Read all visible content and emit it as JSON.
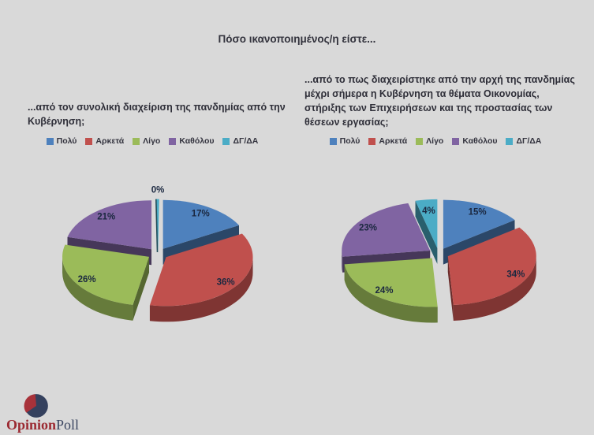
{
  "title": "Πόσο ικανοποιημένος/η είστε...",
  "colors": {
    "background": "#D9D9D9",
    "title_text": "#33333D",
    "label_text": "#1B2840"
  },
  "brand": {
    "name_primary": "Opinion",
    "name_secondary": "Poll",
    "primary_color": "#9B2A32",
    "secondary_color": "#3A4560",
    "mark_color": "#35415E",
    "mark_accent": "#A8323A"
  },
  "chart_data": [
    {
      "type": "pie",
      "variant": "3d-exploded",
      "question": "...από τον συνολική διαχείριση της πανδημίας από την Κυβέρνηση;",
      "categories": [
        "Πολύ",
        "Αρκετά",
        "Λίγο",
        "Καθόλου",
        "ΔΓ/ΔΑ"
      ],
      "values": [
        17,
        36,
        26,
        21,
        0
      ],
      "labels": [
        "17%",
        "36%",
        "26%",
        "21%",
        "0%"
      ],
      "colors": [
        "#4E81BD",
        "#C0504D",
        "#9BBB59",
        "#8064A2",
        "#4BACC6"
      ],
      "legend_position": "top",
      "start_angle_deg": 0,
      "direction": "clockwise"
    },
    {
      "type": "pie",
      "variant": "3d-exploded",
      "question": "...από το πως διαχειρίστηκε από την αρχή της πανδημίας μέχρι σήμερα η Κυβέρνηση τα θέματα Οικονομίας, στήριξης των Επιχειρήσεων και της προστασίας των θέσεων εργασίας;",
      "categories": [
        "Πολύ",
        "Αρκετά",
        "Λίγο",
        "Καθόλου",
        "ΔΓ/ΔΑ"
      ],
      "values": [
        15,
        34,
        24,
        23,
        4
      ],
      "labels": [
        "15%",
        "34%",
        "24%",
        "23%",
        "4%"
      ],
      "colors": [
        "#4E81BD",
        "#C0504D",
        "#9BBB59",
        "#8064A2",
        "#4BACC6"
      ],
      "legend_position": "top",
      "start_angle_deg": 0,
      "direction": "clockwise"
    }
  ]
}
